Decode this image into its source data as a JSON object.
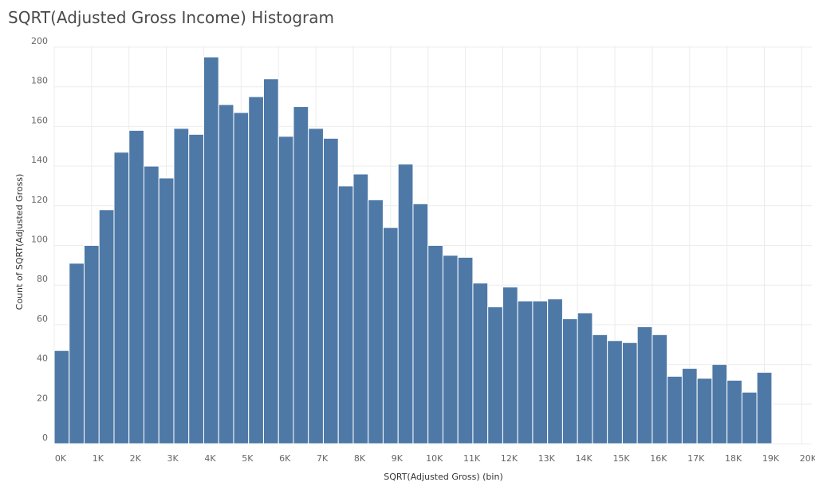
{
  "chart_data": {
    "type": "bar",
    "title": "SQRT(Adjusted Gross Income) Histogram",
    "xlabel": "SQRT(Adjusted Gross) (bin)",
    "ylabel": "Count of SQRT(Adjusted Gross)",
    "bin_width": 400,
    "bin_start": 0,
    "values": [
      47,
      91,
      100,
      118,
      147,
      158,
      140,
      134,
      159,
      156,
      195,
      171,
      167,
      175,
      184,
      155,
      170,
      159,
      154,
      130,
      136,
      123,
      109,
      141,
      121,
      100,
      95,
      94,
      81,
      69,
      79,
      72,
      72,
      73,
      63,
      66,
      55,
      52,
      51,
      59,
      55,
      34,
      38,
      33,
      40,
      32,
      26,
      36
    ],
    "xlim": [
      0,
      20000
    ],
    "ylim": [
      0,
      200
    ],
    "x_ticks": [
      0,
      1000,
      2000,
      3000,
      4000,
      5000,
      6000,
      7000,
      8000,
      9000,
      10000,
      11000,
      12000,
      13000,
      14000,
      15000,
      16000,
      17000,
      18000,
      19000,
      20000
    ],
    "x_tick_labels": [
      "0K",
      "1K",
      "2K",
      "3K",
      "4K",
      "5K",
      "6K",
      "7K",
      "8K",
      "9K",
      "10K",
      "11K",
      "12K",
      "13K",
      "14K",
      "15K",
      "16K",
      "17K",
      "18K",
      "19K",
      "20K"
    ],
    "y_ticks": [
      0,
      20,
      40,
      60,
      80,
      100,
      120,
      140,
      160,
      180,
      200
    ],
    "y_tick_labels": [
      "0",
      "20",
      "40",
      "60",
      "80",
      "100",
      "120",
      "140",
      "160",
      "180",
      "200"
    ],
    "grid": true,
    "colors": {
      "bar": "#4e79a7",
      "grid": "#ececec"
    }
  }
}
